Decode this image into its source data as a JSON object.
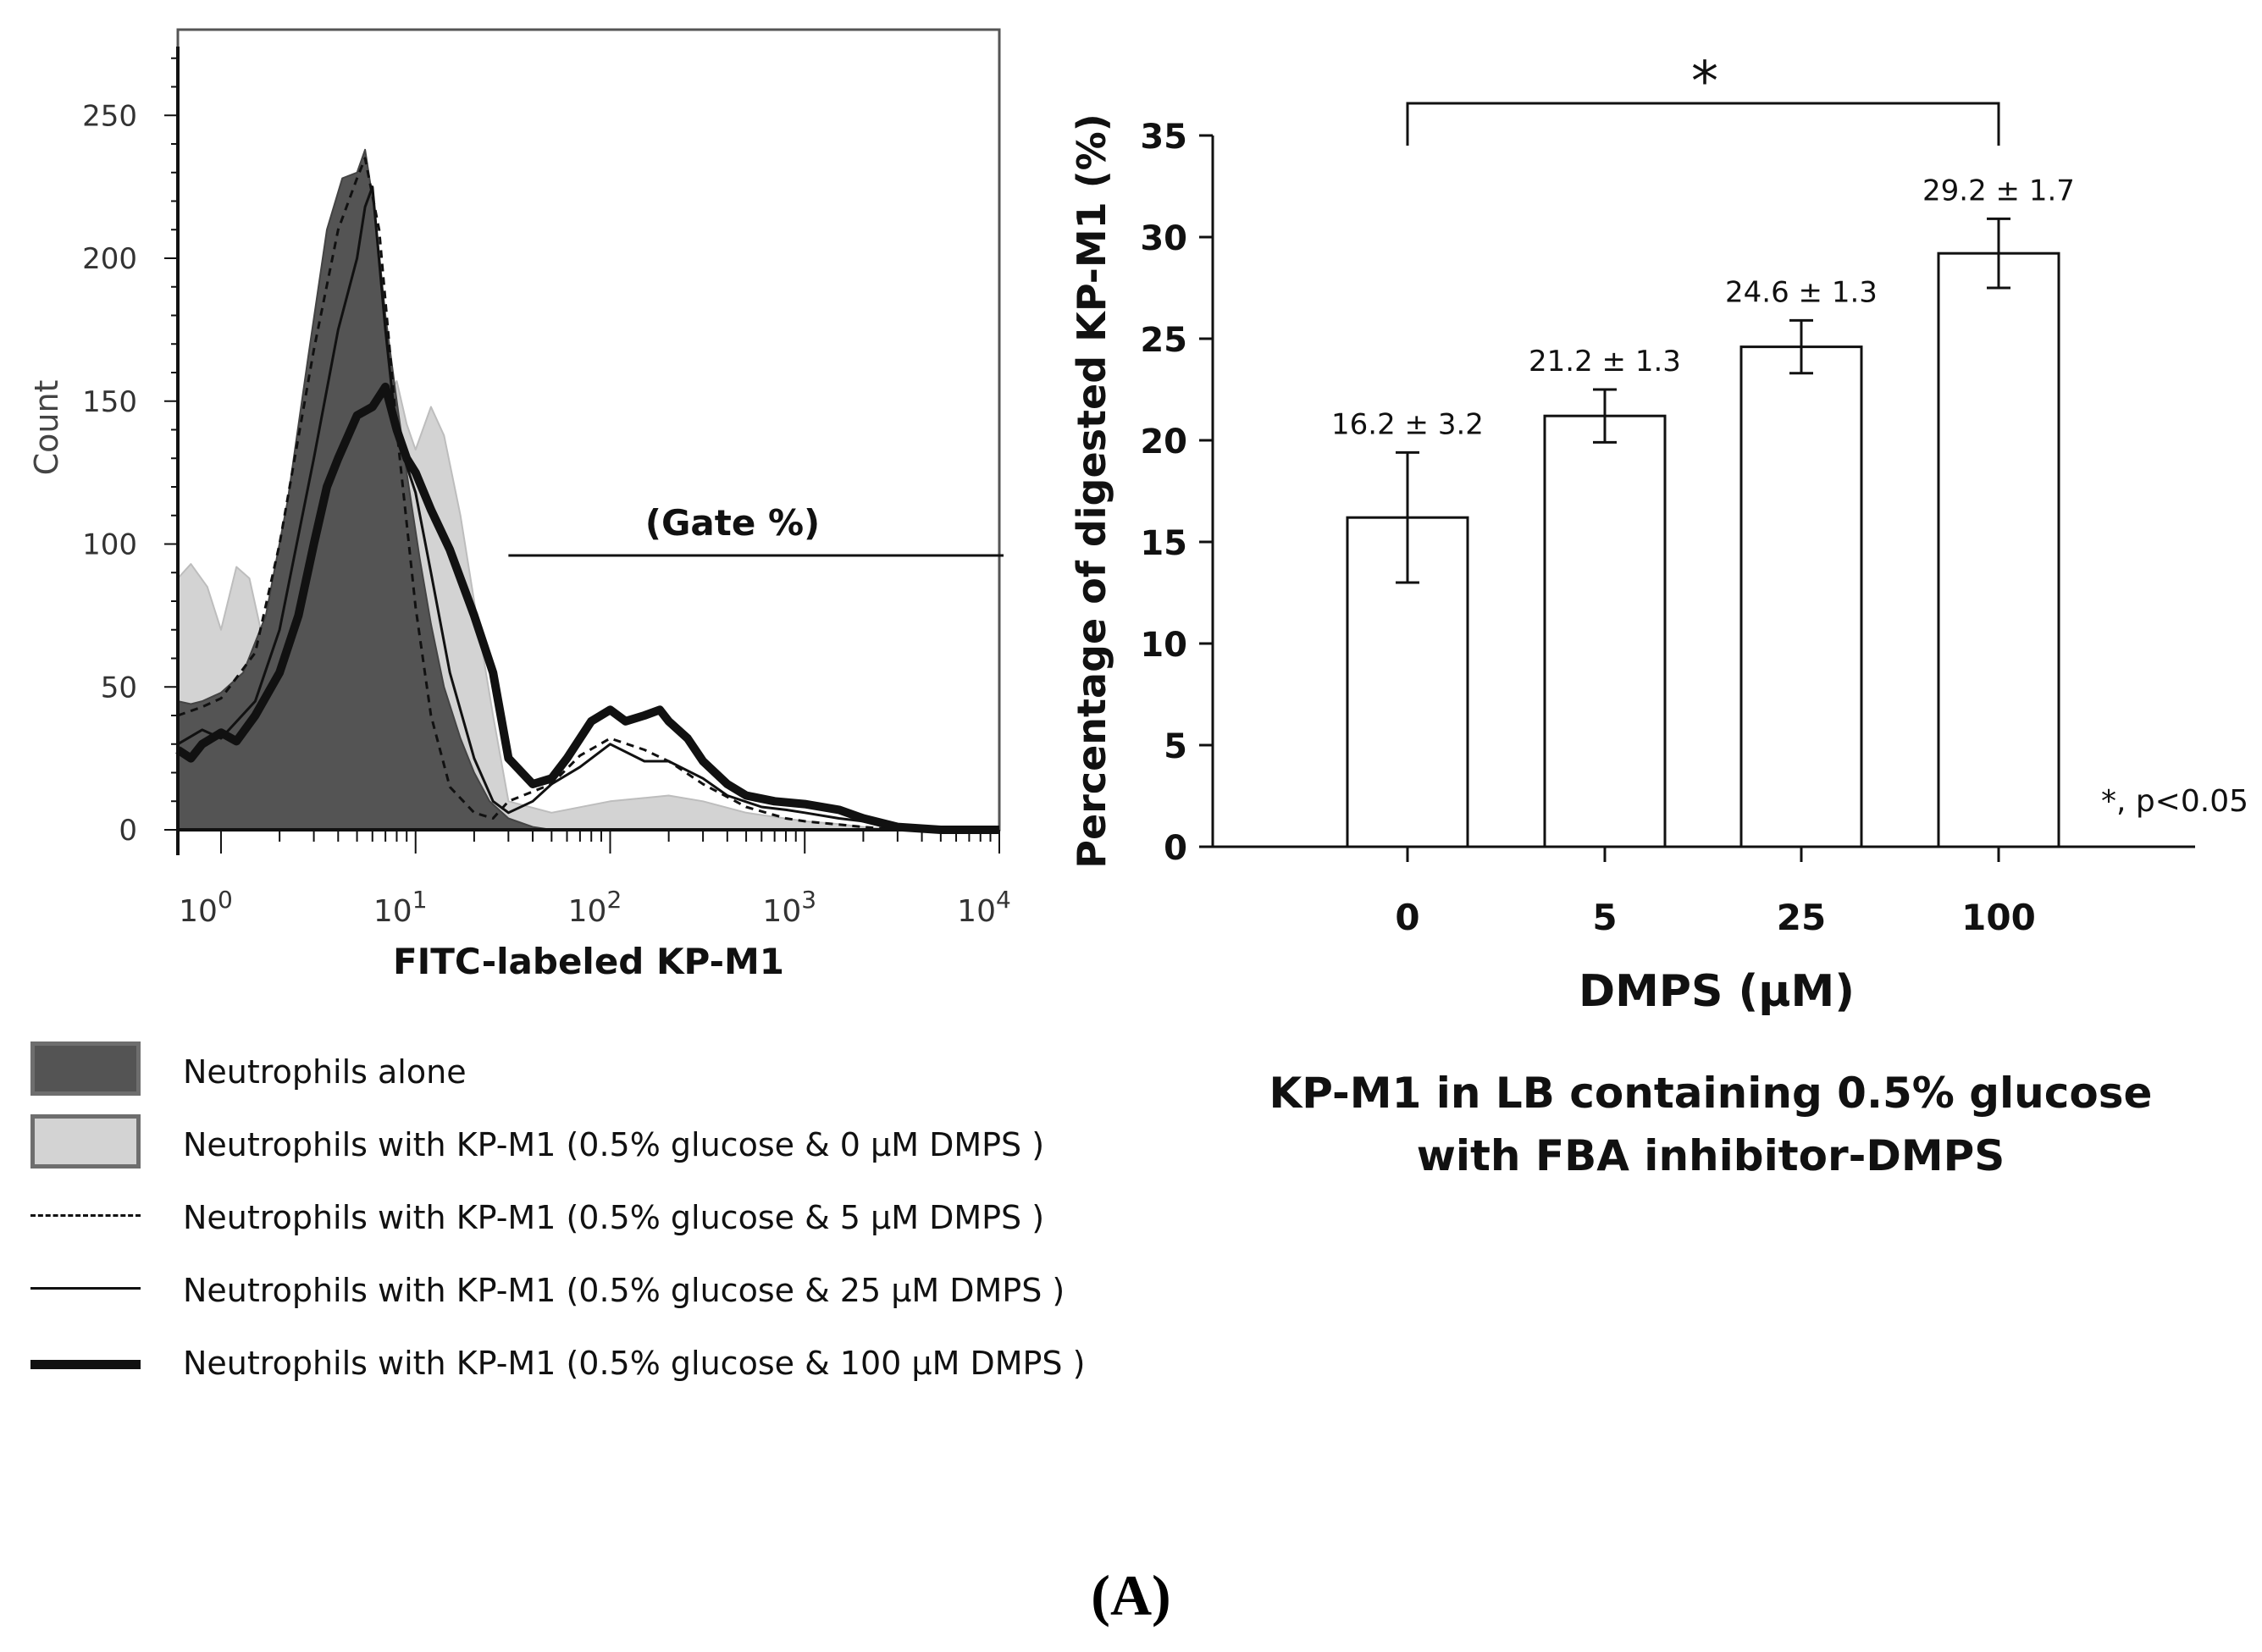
{
  "chart_data": [
    {
      "type": "area",
      "xlabel": "FITC-labeled KP-M1",
      "ylabel": "Count",
      "x_scale": "log",
      "xlim": [
        0.6,
        10000
      ],
      "ylim": [
        0,
        280
      ],
      "x_ticks": [
        1,
        10,
        100,
        1000,
        10000
      ],
      "x_tick_labels": [
        {
          "base": "10",
          "exp": "0"
        },
        {
          "base": "10",
          "exp": "1"
        },
        {
          "base": "10",
          "exp": "2"
        },
        {
          "base": "10",
          "exp": "3"
        },
        {
          "base": "10",
          "exp": "4"
        }
      ],
      "y_ticks": [
        0,
        50,
        100,
        150,
        200,
        250
      ],
      "gate": {
        "label": "(Gate %)",
        "x_start": 30,
        "x_end": 10000,
        "y": 96
      },
      "series": [
        {
          "name": "Neutrophils alone",
          "style": "fill-dark",
          "x": [
            0.6,
            0.7,
            0.8,
            1,
            1.3,
            1.7,
            2.2,
            2.8,
            3.5,
            4.2,
            5,
            5.5,
            6.2,
            7,
            8,
            9,
            10.5,
            12,
            14,
            17,
            20,
            24,
            30,
            40,
            50
          ],
          "y": [
            45,
            44,
            45,
            48,
            55,
            75,
            115,
            165,
            210,
            228,
            230,
            238,
            215,
            180,
            150,
            125,
            95,
            72,
            50,
            32,
            20,
            10,
            4,
            1,
            0
          ]
        },
        {
          "name": "Neutrophils with KP-M1 (0.5% glucose & 0 μM DMPS )",
          "style": "fill-light",
          "x": [
            0.6,
            0.7,
            0.85,
            1,
            1.2,
            1.4,
            1.7,
            2,
            2.5,
            3,
            4,
            5,
            6,
            7,
            8,
            9,
            10,
            12,
            14,
            17,
            20,
            25,
            30,
            50,
            100,
            200,
            300,
            500,
            1000,
            1500,
            2000,
            3000
          ],
          "y": [
            88,
            93,
            85,
            70,
            92,
            88,
            62,
            58,
            88,
            132,
            160,
            150,
            140,
            150,
            157,
            142,
            133,
            148,
            138,
            110,
            80,
            40,
            10,
            6,
            10,
            12,
            10,
            6,
            3,
            2,
            1,
            0
          ]
        },
        {
          "name": "Neutrophils with KP-M1 (0.5% glucose & 5 μM DMPS )",
          "style": "dashed",
          "x": [
            0.6,
            0.8,
            1,
            1.5,
            2,
            3,
            4,
            5,
            5.5,
            6.5,
            8,
            10,
            12,
            15,
            20,
            25,
            30,
            50,
            70,
            100,
            150,
            200,
            300,
            500,
            800,
            1000,
            2000,
            3000,
            5000
          ],
          "y": [
            40,
            43,
            46,
            62,
            100,
            168,
            210,
            228,
            235,
            210,
            140,
            78,
            40,
            15,
            6,
            4,
            10,
            16,
            26,
            32,
            28,
            24,
            16,
            8,
            4,
            3,
            1,
            0,
            0
          ]
        },
        {
          "name": "Neutrophils with KP-M1 (0.5% glucose & 25 μM DMPS )",
          "style": "thin",
          "x": [
            0.6,
            0.8,
            1,
            1.5,
            2,
            3,
            4,
            5,
            5.5,
            6,
            7,
            8,
            10,
            12,
            15,
            20,
            25,
            30,
            40,
            50,
            70,
            100,
            150,
            200,
            300,
            400,
            600,
            800,
            1000,
            1500,
            2000,
            3000,
            5000,
            10000
          ],
          "y": [
            30,
            35,
            32,
            45,
            70,
            130,
            175,
            200,
            218,
            225,
            175,
            138,
            118,
            90,
            55,
            25,
            10,
            6,
            10,
            16,
            22,
            30,
            24,
            24,
            18,
            12,
            8,
            7,
            6,
            4,
            3,
            1,
            0,
            0
          ]
        },
        {
          "name": "Neutrophils with KP-M1 (0.5% glucose & 100 μM DMPS )",
          "style": "thick",
          "x": [
            0.6,
            0.7,
            0.8,
            1,
            1.2,
            1.5,
            2,
            2.5,
            3,
            3.5,
            4,
            5,
            6,
            7,
            8,
            9,
            10,
            12,
            15,
            20,
            25,
            30,
            40,
            50,
            60,
            80,
            100,
            120,
            150,
            180,
            200,
            250,
            300,
            400,
            500,
            700,
            1000,
            1500,
            2000,
            3000,
            5000,
            10000
          ],
          "y": [
            28,
            25,
            30,
            34,
            31,
            40,
            55,
            75,
            100,
            120,
            130,
            145,
            148,
            155,
            140,
            130,
            125,
            112,
            98,
            75,
            55,
            25,
            16,
            18,
            25,
            38,
            42,
            38,
            40,
            42,
            38,
            32,
            24,
            16,
            12,
            10,
            9,
            7,
            4,
            1,
            0,
            0
          ]
        }
      ]
    },
    {
      "type": "bar",
      "categories": [
        "0",
        "5",
        "25",
        "100"
      ],
      "values": [
        16.2,
        21.2,
        24.6,
        29.2
      ],
      "errors": [
        3.2,
        1.3,
        1.3,
        1.7
      ],
      "data_labels": [
        "16.2 ± 3.2",
        "21.2 ± 1.3",
        "24.6 ± 1.3",
        "29.2 ± 1.7"
      ],
      "xlabel": "DMPS (μM)",
      "ylabel": "Percentage of digested KP-M1 (%)",
      "ylim": [
        0,
        35
      ],
      "y_ticks": [
        0,
        5,
        10,
        15,
        20,
        25,
        30,
        35
      ],
      "significance": {
        "from": "0",
        "to": "100",
        "marker": "*"
      },
      "note": "*, p<0.05",
      "caption_lines": [
        "KP-M1 in LB containing 0.5% glucose",
        "with FBA inhibitor-DMPS"
      ]
    }
  ],
  "colors": {
    "dark_fill": "#545454",
    "light_fill": "#d3d3d3",
    "ink": "#111111",
    "frame": "#555555"
  },
  "legend": [
    {
      "label": "Neutrophils alone",
      "swatch": "fill-dark"
    },
    {
      "label": "Neutrophils with KP-M1 (0.5% glucose & 0 μM DMPS )",
      "swatch": "fill-light"
    },
    {
      "label": "Neutrophils with KP-M1 (0.5% glucose & 5 μM DMPS )",
      "swatch": "dashed"
    },
    {
      "label": "Neutrophils with KP-M1 (0.5% glucose & 25 μM DMPS )",
      "swatch": "thin"
    },
    {
      "label": "Neutrophils with KP-M1 (0.5% glucose & 100 μM DMPS )",
      "swatch": "thick"
    }
  ],
  "panel_label": "(A)"
}
